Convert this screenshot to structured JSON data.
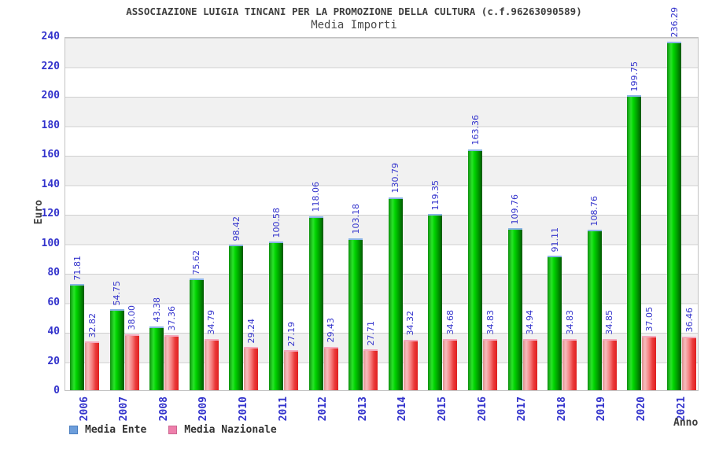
{
  "header": {
    "title": "ASSOCIAZIONE LUIGIA TINCANI PER LA PROMOZIONE DELLA CULTURA (c.f.96263090589)",
    "subtitle": "Media Importi"
  },
  "chart_data": {
    "type": "bar",
    "title": "Media Importi",
    "xlabel": "Anno",
    "ylabel": "Euro",
    "ylim": [
      0,
      240
    ],
    "y_ticks": [
      0,
      20,
      40,
      60,
      80,
      100,
      120,
      140,
      160,
      180,
      200,
      220,
      240
    ],
    "grid": "horizontal gridlines with alternating gray/white bands",
    "legend_position": "bottom-left",
    "value_labels": "rotated 90deg above each bar, two decimals",
    "categories": [
      "2006",
      "2007",
      "2008",
      "2009",
      "2010",
      "2011",
      "2012",
      "2013",
      "2014",
      "2015",
      "2016",
      "2017",
      "2018",
      "2019",
      "2020",
      "2021"
    ],
    "series": [
      {
        "name": "Media Ente",
        "bar_color": "green gradient cylinder",
        "legend_color": "#6d9edb",
        "values": [
          71.81,
          54.75,
          43.38,
          75.62,
          98.42,
          100.58,
          118.06,
          103.18,
          130.79,
          119.35,
          163.36,
          109.76,
          91.11,
          108.76,
          199.75,
          236.29
        ]
      },
      {
        "name": "Media Nazionale",
        "bar_color": "red gradient cylinder",
        "legend_color": "#ee7fab",
        "values": [
          32.82,
          38.0,
          37.36,
          34.79,
          29.24,
          27.19,
          29.43,
          27.71,
          34.32,
          34.68,
          34.83,
          34.94,
          34.83,
          34.85,
          37.05,
          36.46
        ]
      }
    ]
  },
  "colors": {
    "tick_label": "#3333cc",
    "value_label": "#3333cc",
    "title_text": "#3f3f3f",
    "band_gray": "#f1f1f1",
    "gridline": "#cfcfcf",
    "plot_border": "#c3c3c3",
    "green_bar_cap": "#8ab4e6",
    "red_bar_cap": "#f4aabe"
  }
}
